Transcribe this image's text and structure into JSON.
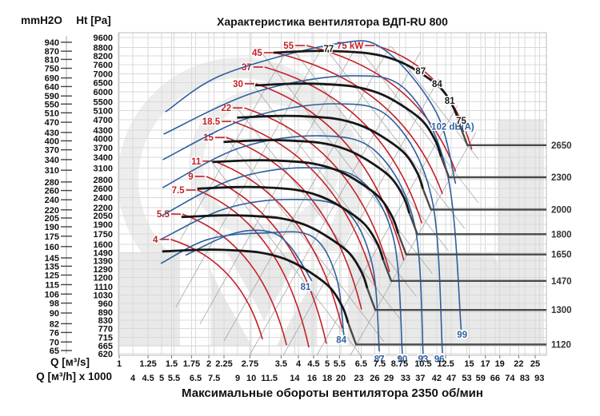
{
  "page": {
    "title": "Характеристика вентилятора ВДП-RU 800",
    "bottom_title": "Максимальные обороты вентилятора 2350 об/мин"
  },
  "axes": {
    "left_primary_label": "mmH2O",
    "left_secondary_label": "Ht [Pa]",
    "x_primary_label": "Q [м³/s]",
    "x_secondary_label": "Q [м³/h] x 1000",
    "mmh2o_ticks": [
      "940",
      "870",
      "810",
      "750",
      "690",
      "640",
      "590",
      "550",
      "510",
      "470",
      "430",
      "400",
      "370",
      "340",
      "310",
      "280",
      "260",
      "240",
      "220",
      "205",
      "190",
      "175",
      "160",
      "145",
      "135",
      "125",
      "115",
      "106",
      "98",
      "90",
      "82",
      "76",
      "70",
      "65"
    ],
    "pa_ticks": [
      "9600",
      "8800",
      "8200",
      "7600",
      "7000",
      "6500",
      "6000",
      "5500",
      "5100",
      "4700",
      "4300",
      "4000",
      "3700",
      "3400",
      "3100",
      "2800",
      "2600",
      "2400",
      "2200",
      "2050",
      "1900",
      "1750",
      "1600",
      "1490",
      "1390",
      "1290",
      "1200",
      "1110",
      "1030",
      "960",
      "890",
      "830",
      "770",
      "715",
      "665",
      "620"
    ],
    "q_m3s_ticks": [
      "1",
      "1.25",
      "1.5",
      "1.75",
      "2",
      "2.25",
      "2.75",
      "3.5",
      "4",
      "4.5",
      "5",
      "5.5",
      "6.5",
      "7.5",
      "8.75",
      "10.5",
      "12.5",
      "15",
      "17",
      "19",
      "22",
      "25"
    ],
    "q_m3h_ticks": [
      "4",
      "4.5",
      "5",
      "5.5",
      "6.5",
      "7.5",
      "9",
      "10",
      "11.5",
      "14",
      "16",
      "18",
      "20",
      "23",
      "26",
      "29",
      "33",
      "37",
      "42",
      "47",
      "53",
      "59",
      "66",
      "74",
      "83",
      "93"
    ]
  },
  "chart_data": {
    "type": "line",
    "title": "Характеристика вентилятора ВДП-RU 800",
    "xlabel": "Q [м³/s] / Q [м³/h] x 1000",
    "ylabel": "mmH2O / Ht [Pa]",
    "x_scale": "log",
    "y_scale": "log",
    "x_range_m3s": [
      1,
      27
    ],
    "y_range_pa": [
      620,
      10000
    ],
    "max_rpm_note": "2350 об/мин",
    "fan_curves": {
      "base_rpm": 2650,
      "rpm_labels": [
        "2650",
        "2300",
        "2000",
        "1800",
        "1650",
        "1470",
        "1300",
        "1120"
      ],
      "rpms": [
        2650,
        2300,
        2000,
        1800,
        1650,
        1470,
        1300,
        1120
      ],
      "base_curve_q_pa": [
        [
          3.3,
          8420
        ],
        [
          4.4,
          8540
        ],
        [
          5.35,
          8530
        ],
        [
          7.0,
          8350
        ],
        [
          8.5,
          7900
        ],
        [
          10.0,
          7210
        ],
        [
          12.0,
          6210
        ],
        [
          13.3,
          5220
        ],
        [
          13.9,
          4540
        ]
      ],
      "leader_pa": [
        3777,
        2861,
        2161,
        1747,
        1465,
        1165,
        906,
        672
      ]
    },
    "power_curves": [
      {
        "label": "4",
        "points": [
          [
            1.49,
            1670
          ],
          [
            3.03,
            702
          ]
        ]
      },
      {
        "label": "5.5",
        "points": [
          [
            1.63,
            2080
          ],
          [
            3.65,
            668
          ]
        ]
      },
      {
        "label": "7.5",
        "points": [
          [
            1.83,
            2560
          ],
          [
            4.34,
            655
          ]
        ]
      },
      {
        "label": "9",
        "points": [
          [
            1.96,
            2880
          ],
          [
            4.97,
            676
          ]
        ]
      },
      {
        "label": "11",
        "points": [
          [
            2.08,
            3290
          ],
          [
            5.62,
            771
          ]
        ]
      },
      {
        "label": "15",
        "points": [
          [
            2.29,
            4040
          ],
          [
            6.52,
            910
          ]
        ]
      },
      {
        "label": "18.5",
        "points": [
          [
            2.41,
            4640
          ],
          [
            7.3,
            1085
          ]
        ]
      },
      {
        "label": "22",
        "points": [
          [
            2.63,
            5220
          ],
          [
            8.1,
            1260
          ]
        ]
      },
      {
        "label": "30",
        "points": [
          [
            2.88,
            6430
          ],
          [
            9.04,
            1395
          ]
        ]
      },
      {
        "label": "37",
        "points": [
          [
            3.08,
            7430
          ],
          [
            10.4,
            1920
          ]
        ]
      },
      {
        "label": "45",
        "points": [
          [
            3.34,
            8420
          ],
          [
            12.2,
            2475
          ]
        ]
      },
      {
        "label": "55",
        "points": [
          [
            4.26,
            8960
          ],
          [
            13.5,
            3010
          ]
        ]
      },
      {
        "label": "75 kW",
        "points": [
          [
            7.3,
            8960
          ],
          [
            15.3,
            3640
          ]
        ]
      }
    ],
    "noise_curves": [
      {
        "label": "81",
        "label_at": [
          4.23,
          1110
        ],
        "points": [
          [
            1.67,
            1455
          ],
          [
            2.39,
            1750
          ],
          [
            3.16,
            1790
          ],
          [
            3.74,
            1580
          ],
          [
            4.44,
            1165
          ]
        ]
      },
      {
        "label": "84",
        "label_at": [
          5.58,
          700
        ],
        "points": [
          [
            1.38,
            1355
          ],
          [
            1.99,
            1670
          ],
          [
            3.06,
            1765
          ],
          [
            4.44,
            1715
          ],
          [
            5.35,
            1220
          ],
          [
            5.69,
            725
          ]
        ]
      },
      {
        "label": "87",
        "label_at": [
          7.48,
          592
        ],
        "points": [
          [
            1.38,
            1670
          ],
          [
            2.25,
            2170
          ],
          [
            3.69,
            2360
          ],
          [
            5.69,
            2170
          ],
          [
            7.07,
            1355
          ],
          [
            7.48,
            632
          ]
        ]
      },
      {
        "label": "90",
        "label_at": [
          8.94,
          592
        ],
        "points": [
          [
            1.39,
            2050
          ],
          [
            2.39,
            2800
          ],
          [
            4.18,
            3105
          ],
          [
            6.45,
            2800
          ],
          [
            8.36,
            1670
          ],
          [
            8.94,
            620
          ]
        ]
      },
      {
        "label": "93",
        "label_at": [
          10.5,
          592
        ],
        "points": [
          [
            1.4,
            2615
          ],
          [
            2.54,
            3690
          ],
          [
            4.73,
            4095
          ],
          [
            7.3,
            3570
          ],
          [
            9.81,
            1915
          ],
          [
            10.5,
            620
          ]
        ]
      },
      {
        "label": "96",
        "label_at": [
          11.9,
          592
        ],
        "points": [
          [
            1.4,
            3330
          ],
          [
            2.71,
            4775
          ],
          [
            5.35,
            5405
          ],
          [
            8.25,
            4710
          ],
          [
            11.25,
            2360
          ],
          [
            12.2,
            624
          ]
        ]
      },
      {
        "label": "99",
        "label_at": [
          14.2,
          732
        ],
        "points": [
          [
            1.41,
            4155
          ],
          [
            2.88,
            5995
          ],
          [
            6.05,
            6890
          ],
          [
            9.34,
            5995
          ],
          [
            12.7,
            2900
          ],
          [
            14.1,
            763
          ]
        ]
      },
      {
        "label": "102 dB(A)",
        "label_at": [
          13.2,
          4440
        ],
        "points": [
          [
            1.43,
            5040
          ],
          [
            2.25,
            6990
          ],
          [
            5.35,
            9090
          ],
          [
            7.76,
            8655
          ],
          [
            11.6,
            5040
          ],
          [
            13.5,
            2705
          ]
        ]
      }
    ],
    "point_labels": [
      {
        "text": "77",
        "color": "dark",
        "q": 5.06,
        "pa": 8720
      },
      {
        "text": "87",
        "color": "dark",
        "q": 10.3,
        "pa": 7175
      },
      {
        "text": "84",
        "color": "dark",
        "q": 11.7,
        "pa": 6430
      },
      {
        "text": "81",
        "color": "dark",
        "q": 12.9,
        "pa": 5560
      },
      {
        "text": "75",
        "color": "dark",
        "q": 14.1,
        "pa": 4670
      }
    ]
  },
  "colors": {
    "fan_curve": "#161616",
    "power_curve": "#c32127",
    "noise_curve": "#2e5f9e",
    "leader": "#4a4a4a",
    "grid": "#d9d9d9",
    "lattice": "#9b9b9b",
    "watermark": "#e7e7e7",
    "rpm_label": "#333333",
    "tick_label": "#111111"
  }
}
